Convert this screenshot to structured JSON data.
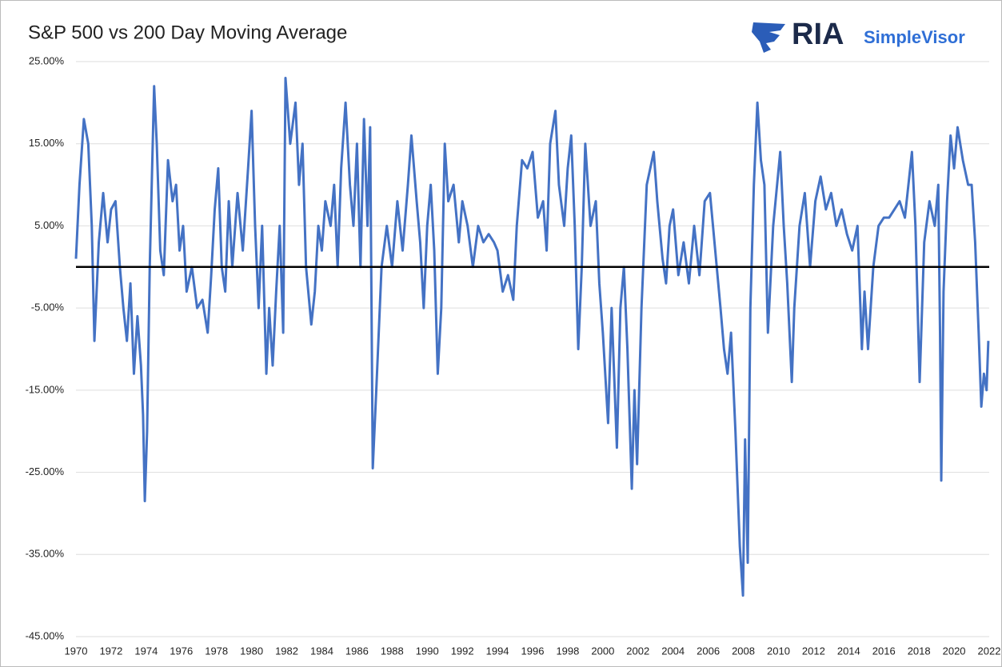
{
  "logo": {
    "brand": "RIA",
    "product": "SimpleVisor"
  },
  "chart_data": {
    "type": "line",
    "title": "S&P 500 vs 200 Day Moving Average",
    "x": [
      1970.0,
      1970.2,
      1970.45,
      1970.7,
      1970.9,
      1971.05,
      1971.3,
      1971.55,
      1971.8,
      1972.0,
      1972.25,
      1972.5,
      1972.7,
      1972.9,
      1973.1,
      1973.3,
      1973.5,
      1973.7,
      1973.82,
      1973.92,
      1974.05,
      1974.2,
      1974.45,
      1974.6,
      1974.8,
      1975.0,
      1975.24,
      1975.5,
      1975.7,
      1975.9,
      1976.1,
      1976.3,
      1976.6,
      1976.9,
      1977.2,
      1977.5,
      1977.7,
      1977.9,
      1978.1,
      1978.3,
      1978.5,
      1978.7,
      1978.9,
      1979.2,
      1979.5,
      1979.8,
      1980.0,
      1980.2,
      1980.4,
      1980.6,
      1980.84,
      1981.0,
      1981.2,
      1981.4,
      1981.6,
      1981.8,
      1981.93,
      1982.2,
      1982.5,
      1982.7,
      1982.9,
      1983.1,
      1983.4,
      1983.6,
      1983.8,
      1984.0,
      1984.2,
      1984.5,
      1984.7,
      1984.9,
      1985.1,
      1985.35,
      1985.6,
      1985.8,
      1986.0,
      1986.2,
      1986.4,
      1986.6,
      1986.75,
      1986.9,
      1987.1,
      1987.4,
      1987.7,
      1988.0,
      1988.3,
      1988.6,
      1988.9,
      1989.1,
      1989.4,
      1989.6,
      1989.8,
      1990.0,
      1990.2,
      1990.4,
      1990.6,
      1990.8,
      1991.0,
      1991.2,
      1991.5,
      1991.8,
      1992.0,
      1992.3,
      1992.6,
      1992.9,
      1993.2,
      1993.5,
      1993.8,
      1994.0,
      1994.3,
      1994.6,
      1994.9,
      1995.1,
      1995.4,
      1995.7,
      1996.0,
      1996.3,
      1996.6,
      1996.8,
      1997.0,
      1997.3,
      1997.5,
      1997.8,
      1998.0,
      1998.2,
      1998.4,
      1998.6,
      1998.8,
      1999.0,
      1999.3,
      1999.6,
      1999.8,
      2000.0,
      2000.3,
      2000.5,
      2000.8,
      2001.0,
      2001.2,
      2001.4,
      2001.65,
      2001.8,
      2001.95,
      2002.2,
      2002.5,
      2002.7,
      2002.9,
      2003.1,
      2003.4,
      2003.6,
      2003.8,
      2004.0,
      2004.3,
      2004.6,
      2004.9,
      2005.2,
      2005.5,
      2005.8,
      2006.1,
      2006.4,
      2006.7,
      2006.9,
      2007.1,
      2007.3,
      2007.55,
      2007.8,
      2007.98,
      2008.1,
      2008.25,
      2008.4,
      2008.6,
      2008.8,
      2009.0,
      2009.2,
      2009.4,
      2009.7,
      2010.1,
      2010.3,
      2010.5,
      2010.76,
      2010.9,
      2011.2,
      2011.5,
      2011.8,
      2012.1,
      2012.4,
      2012.7,
      2013.0,
      2013.3,
      2013.6,
      2013.9,
      2014.2,
      2014.5,
      2014.75,
      2014.9,
      2015.1,
      2015.4,
      2015.7,
      2016.0,
      2016.3,
      2016.6,
      2016.9,
      2017.2,
      2017.6,
      2017.8,
      2018.04,
      2018.3,
      2018.6,
      2018.9,
      2019.1,
      2019.2,
      2019.27,
      2019.4,
      2019.6,
      2019.8,
      2020.0,
      2020.2,
      2020.5,
      2020.8,
      2021.0,
      2021.2,
      2021.4,
      2021.55,
      2021.7,
      2021.85,
      2021.95
    ],
    "series": [
      {
        "color": "#4472c4",
        "values": [
          1,
          10,
          18,
          15,
          5,
          -9,
          3,
          9,
          3,
          7,
          8,
          0,
          -5,
          -9,
          -2,
          -13,
          -6,
          -12,
          -18,
          -28.5,
          -20,
          0,
          22,
          15,
          2,
          -1,
          13,
          8,
          10,
          2,
          5,
          -3,
          0,
          -5,
          -4,
          -8,
          -1,
          7,
          12,
          0,
          -3,
          8,
          0,
          9,
          2,
          12,
          19,
          5,
          -5,
          5,
          -13,
          -5,
          -12,
          -3,
          5,
          -8,
          23,
          15,
          20,
          10,
          15,
          0,
          -7,
          -3,
          5,
          2,
          8,
          5,
          10,
          0,
          12,
          20,
          10,
          5,
          15,
          0,
          18,
          5,
          17,
          -24.5,
          -15,
          0,
          5,
          0,
          8,
          2,
          10,
          16,
          8,
          3,
          -5,
          5,
          10,
          2,
          -13,
          -5,
          15,
          8,
          10,
          3,
          8,
          5,
          0,
          5,
          3,
          4,
          3,
          2,
          -3,
          -1,
          -4,
          5,
          13,
          12,
          14,
          6,
          8,
          2,
          15,
          19,
          10,
          5,
          12,
          16,
          5,
          -10,
          0,
          15,
          5,
          8,
          -2,
          -8,
          -19,
          -5,
          -22,
          -5,
          0,
          -10,
          -27,
          -15,
          -24,
          -5,
          10,
          12,
          14,
          8,
          1,
          -2,
          5,
          7,
          -1,
          3,
          -2,
          5,
          -1,
          8,
          9,
          2,
          -5,
          -10,
          -13,
          -8,
          -20,
          -34,
          -40,
          -21,
          -36,
          -5,
          10,
          20,
          13,
          10,
          -8,
          5,
          14,
          5,
          -2,
          -14,
          -5,
          5,
          9,
          0,
          8,
          11,
          7,
          9,
          5,
          7,
          4,
          2,
          5,
          -10,
          -3,
          -10,
          0,
          5,
          6,
          6,
          7,
          8,
          6,
          14,
          5,
          -14,
          3,
          8,
          5,
          10,
          -8,
          -26,
          -3,
          8,
          16,
          12,
          17,
          13,
          10,
          10,
          3,
          -8,
          -17,
          -13,
          -15,
          -9
        ]
      }
    ],
    "xlim": [
      1970,
      2022
    ],
    "xticks": [
      1970,
      1972,
      1974,
      1976,
      1978,
      1980,
      1982,
      1984,
      1986,
      1988,
      1990,
      1992,
      1994,
      1996,
      1998,
      2000,
      2002,
      2004,
      2006,
      2008,
      2010,
      2012,
      2014,
      2016,
      2018,
      2020,
      2022
    ],
    "ylim": [
      -45,
      25
    ],
    "yticks": [
      {
        "value": 25,
        "label": "25.00%"
      },
      {
        "value": 15,
        "label": "15.00%"
      },
      {
        "value": 5,
        "label": "5.00%"
      },
      {
        "value": -5,
        "label": "-5.00%"
      },
      {
        "value": -15,
        "label": "-15.00%"
      },
      {
        "value": -25,
        "label": "-25.00%"
      },
      {
        "value": -35,
        "label": "-35.00%"
      },
      {
        "value": -45,
        "label": "-45.00%"
      }
    ],
    "grid": true,
    "reference_line": 0
  }
}
